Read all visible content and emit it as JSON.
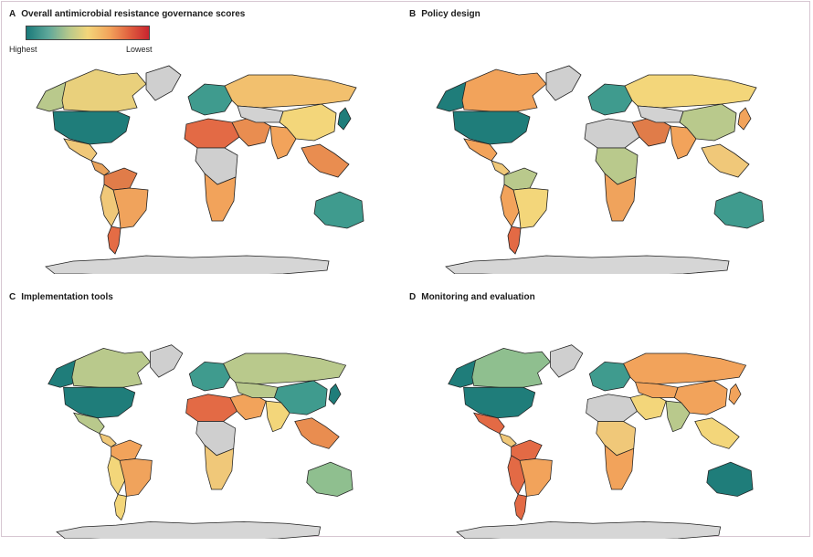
{
  "legend": {
    "high_label": "Highest",
    "low_label": "Lowest",
    "colors": [
      "#1a7a7a",
      "#5fa89a",
      "#b8c98b",
      "#f3d67a",
      "#f2a35b",
      "#e0603f",
      "#c9242f"
    ]
  },
  "panels": [
    {
      "letter": "A",
      "title": "Overall antimicrobial resistance governance scores",
      "regions": {
        "canada": "#e9d07c",
        "alaska": "#b9c98c",
        "usa": "#1f7d7a",
        "mexico": "#f0c879",
        "central_america": "#e8a25c",
        "greenland": "#cfcfcf",
        "south_america_north": "#e07c49",
        "brazil": "#f0a35c",
        "south_america_west": "#f0c879",
        "argentina": "#e46c45",
        "europe": "#3f9b8e",
        "russia": "#f2c06e",
        "north_africa": "#e36a45",
        "africa_central": "#cfcfcf",
        "africa_south": "#f2a35b",
        "middle_east": "#e98d50",
        "india": "#f2a35b",
        "china": "#f3d67a",
        "central_asia": "#d2d2d2",
        "se_asia": "#e98d50",
        "australia": "#3f9b8e",
        "japan": "#1f7d7a"
      }
    },
    {
      "letter": "B",
      "title": "Policy design",
      "regions": {
        "canada": "#f2a35b",
        "alaska": "#1f7d7a",
        "usa": "#1f7d7a",
        "mexico": "#f2a35b",
        "central_america": "#f0c879",
        "greenland": "#cfcfcf",
        "south_america_north": "#b9c98c",
        "brazil": "#f3d67a",
        "south_america_west": "#f2a35b",
        "argentina": "#e36a45",
        "europe": "#3f9b8e",
        "russia": "#f3d67a",
        "north_africa": "#cfcfcf",
        "africa_central": "#b9c98c",
        "africa_south": "#f0a35c",
        "middle_east": "#e07c49",
        "india": "#f2a35b",
        "china": "#b9c98c",
        "central_asia": "#d2d2d2",
        "se_asia": "#f0c879",
        "australia": "#3f9b8e",
        "japan": "#f2a35b"
      }
    },
    {
      "letter": "C",
      "title": "Implementation tools",
      "regions": {
        "canada": "#b9c98c",
        "alaska": "#1f7d7a",
        "usa": "#1f7d7a",
        "mexico": "#b9c98c",
        "central_america": "#f0c879",
        "greenland": "#cfcfcf",
        "south_america_north": "#f2a35b",
        "brazil": "#f0a35c",
        "south_america_west": "#f3d67a",
        "argentina": "#f3d67a",
        "europe": "#3f9b8e",
        "russia": "#b9c98c",
        "north_africa": "#e36a45",
        "africa_central": "#cfcfcf",
        "africa_south": "#f0c879",
        "middle_east": "#f2a35b",
        "india": "#f3d67a",
        "china": "#3f9b8e",
        "central_asia": "#b9c98c",
        "se_asia": "#e98d50",
        "australia": "#8fbf8f",
        "japan": "#1f7d7a"
      }
    },
    {
      "letter": "D",
      "title": "Monitoring and evaluation",
      "regions": {
        "canada": "#8fbf8f",
        "alaska": "#1f7d7a",
        "usa": "#1f7d7a",
        "mexico": "#e36a45",
        "central_america": "#f0c879",
        "greenland": "#cfcfcf",
        "south_america_north": "#e36a45",
        "brazil": "#f2a35b",
        "south_america_west": "#e36a45",
        "argentina": "#e36a45",
        "europe": "#3f9b8e",
        "russia": "#f2a35b",
        "north_africa": "#cfcfcf",
        "africa_central": "#f0c879",
        "africa_south": "#f2a35b",
        "middle_east": "#f3d67a",
        "india": "#b9c98c",
        "china": "#f2a35b",
        "central_asia": "#f2a35b",
        "se_asia": "#f3d67a",
        "australia": "#1f7d7a",
        "japan": "#f2a35b"
      }
    }
  ]
}
